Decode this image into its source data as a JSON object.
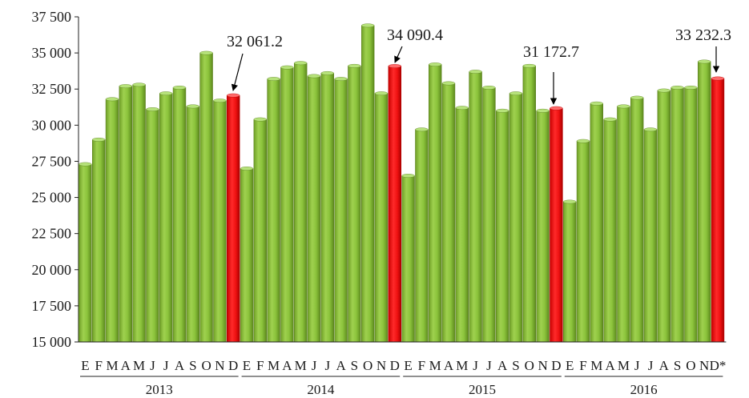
{
  "chart_data": {
    "type": "bar",
    "ylim": [
      15000,
      37500
    ],
    "yticks": [
      15000,
      17500,
      20000,
      22500,
      25000,
      27500,
      30000,
      32500,
      35000,
      37500
    ],
    "ytick_labels": [
      "15 000",
      "17 500",
      "20 000",
      "22 500",
      "25 000",
      "27 500",
      "30 000",
      "32 500",
      "35 000",
      "37 500"
    ],
    "colors": {
      "bar": "#8cc43c",
      "highlight": "#ee1111",
      "arrow": "#000000"
    },
    "groups": [
      {
        "year": "2013",
        "months": [
          "E",
          "F",
          "M",
          "A",
          "M",
          "J",
          "J",
          "A",
          "S",
          "O",
          "N",
          "D"
        ],
        "values": [
          27300,
          29000,
          31800,
          32700,
          32800,
          31100,
          32200,
          32600,
          31300,
          35000,
          31700,
          32061.2
        ],
        "label": "32 061.2"
      },
      {
        "year": "2014",
        "months": [
          "E",
          "F",
          "M",
          "A",
          "M",
          "J",
          "J",
          "A",
          "S",
          "O",
          "N",
          "D"
        ],
        "values": [
          27000,
          30400,
          33200,
          34000,
          34300,
          33400,
          33600,
          33200,
          34100,
          36900,
          32200,
          34090.4
        ],
        "label": "34 090.4"
      },
      {
        "year": "2015",
        "months": [
          "E",
          "F",
          "M",
          "A",
          "M",
          "J",
          "J",
          "A",
          "S",
          "O",
          "N",
          "D"
        ],
        "values": [
          26500,
          29700,
          34200,
          32900,
          31200,
          33700,
          32600,
          31000,
          32200,
          34100,
          31000,
          31172.7
        ],
        "label": "31 172.7"
      },
      {
        "year": "2016",
        "months": [
          "E",
          "F",
          "M",
          "A",
          "M",
          "J",
          "J",
          "A",
          "S",
          "O",
          "N",
          "D*"
        ],
        "values": [
          24700,
          28900,
          31500,
          30400,
          31300,
          31900,
          29700,
          32400,
          32600,
          32600,
          34400,
          33232.3
        ],
        "label": "33 232.3"
      }
    ]
  }
}
